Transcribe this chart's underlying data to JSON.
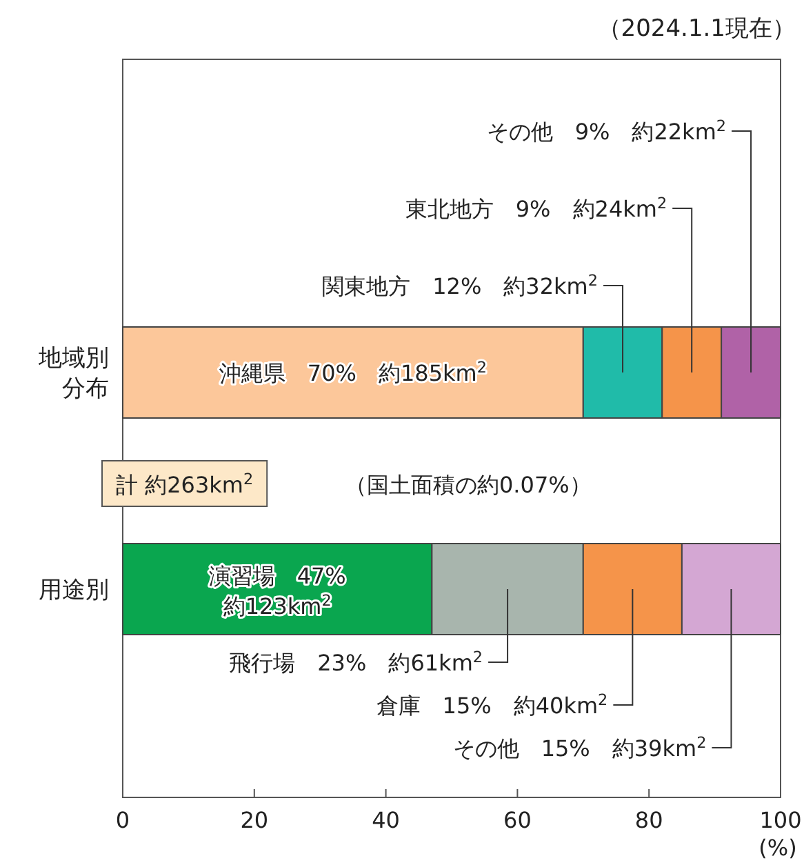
{
  "chart_data": {
    "type": "bar",
    "orientation": "horizontal",
    "stacked": true,
    "categories": [
      "地域別分布",
      "用途別"
    ],
    "series": [
      {
        "colors": [
          "#fcc79a",
          "#0aa64f"
        ],
        "values": [
          70,
          47
        ],
        "value_labels": [
          "沖縄県　70%　約185km$^{2}$",
          "演習場　47%　約123km$^{2}$"
        ]
      },
      {
        "colors": [
          "#20bba9",
          "#a8b5ad"
        ],
        "values": [
          12,
          23
        ],
        "value_labels": [
          "関東地方　12%　約32km$^{2}$",
          "飛行場　23%　約61km$^{2}$"
        ]
      },
      {
        "colors": [
          "#f5944a",
          "#f5944a"
        ],
        "values": [
          9,
          15
        ],
        "value_labels": [
          "東北地方　9%　約24km$^{2}$",
          "倉庫　15%　約40km$^{2}$"
        ]
      },
      {
        "colors": [
          "#b062a7",
          "#d4a7d3"
        ],
        "values": [
          9,
          15
        ],
        "value_labels": [
          "その他　9%　約22km$^{2}$",
          "その他　15%　約39km$^{2}$"
        ]
      }
    ],
    "xlim": [
      0,
      100
    ],
    "xticks": [
      0,
      20,
      40,
      60,
      80,
      100
    ],
    "xlabel": "(%)",
    "grid": false,
    "annotations": [
      "（2024.1.1現在）",
      "計 約263km$^{2}$",
      "（国土面積の約0.07%）"
    ]
  }
}
